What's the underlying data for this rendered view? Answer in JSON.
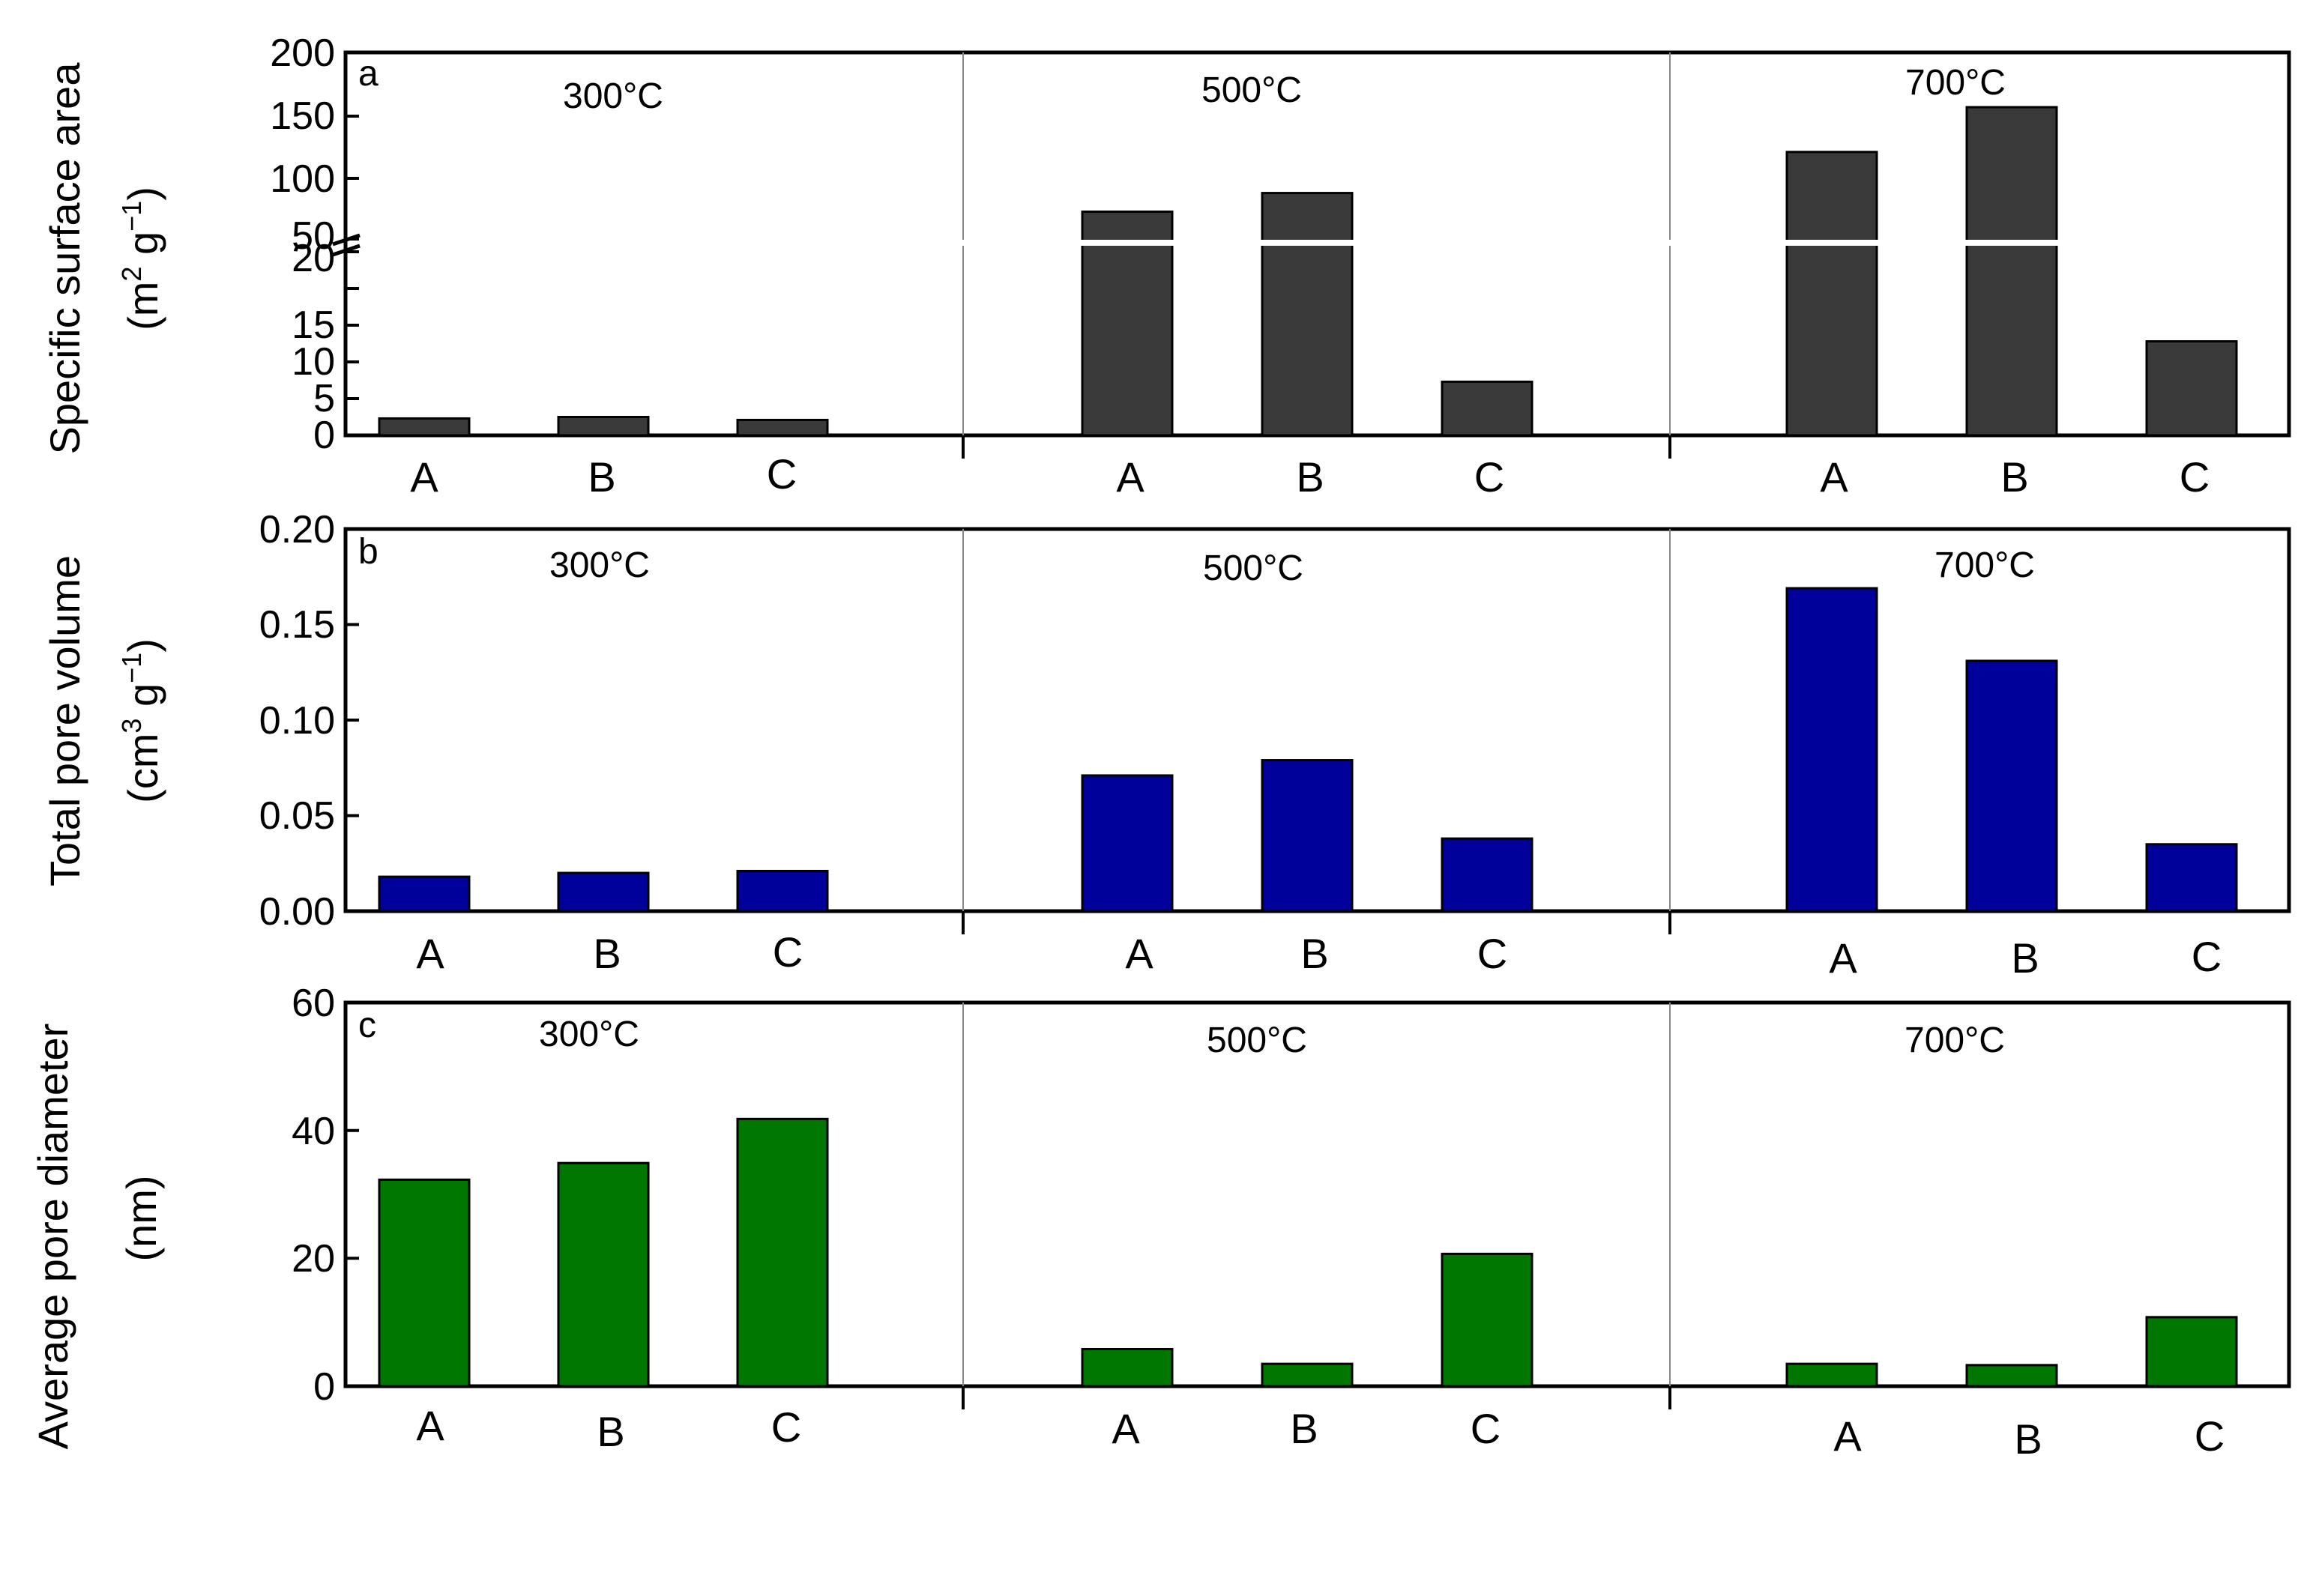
{
  "chart_data": [
    {
      "type": "bar",
      "panel_label": "a",
      "ylabel_line1": "Specific surface area",
      "ylabel_line2": "(m² g⁻¹)",
      "ylabel_parts": {
        "open": "(m",
        "sup1": "2",
        "mid": " g",
        "sup2": "−1",
        "close": ")"
      },
      "axis_break": true,
      "lower_range": [
        0,
        20
      ],
      "upper_range": [
        50,
        200
      ],
      "upper_ticks": [
        "200",
        "150",
        "100",
        "50"
      ],
      "lower_ticks": [
        "20",
        "15",
        "10",
        "5",
        "0"
      ],
      "groups": [
        {
          "label": "300°C",
          "categories": [
            "A",
            "B",
            "C"
          ],
          "values": [
            2.3,
            2.5,
            2.1
          ]
        },
        {
          "label": "500°C",
          "categories": [
            "A",
            "B",
            "C"
          ],
          "values": [
            72,
            87,
            7.3
          ]
        },
        {
          "label": "700°C",
          "categories": [
            "A",
            "B",
            "C"
          ],
          "values": [
            120,
            156,
            12.8
          ]
        }
      ],
      "color": "#3a3a3a"
    },
    {
      "type": "bar",
      "panel_label": "b",
      "ylabel_line1": "Total pore volume",
      "ylabel_line2": "(cm³ g⁻¹)",
      "ylabel_parts": {
        "open": "(cm",
        "sup1": "3",
        "mid": " g",
        "sup2": "−1",
        "close": ")"
      },
      "ylim": [
        0,
        0.2
      ],
      "ticks": [
        "0.20",
        "0.15",
        "0.10",
        "0.05",
        "0.00"
      ],
      "groups": [
        {
          "label": "300°C",
          "categories": [
            "A",
            "B",
            "C"
          ],
          "values": [
            0.018,
            0.02,
            0.021
          ]
        },
        {
          "label": "500°C",
          "categories": [
            "A",
            "B",
            "C"
          ],
          "values": [
            0.071,
            0.079,
            0.038
          ]
        },
        {
          "label": "700°C",
          "categories": [
            "A",
            "B",
            "C"
          ],
          "values": [
            0.169,
            0.131,
            0.035
          ]
        }
      ],
      "color": "#00009b"
    },
    {
      "type": "bar",
      "panel_label": "c",
      "ylabel_line1": "Average pore diameter",
      "ylabel_line2": "(nm)",
      "ylim": [
        0,
        60
      ],
      "ticks": [
        "60",
        "40",
        "20",
        "0"
      ],
      "groups": [
        {
          "label": "300°C",
          "categories": [
            "A",
            "B",
            "C"
          ],
          "values": [
            32.3,
            34.9,
            41.8
          ]
        },
        {
          "label": "500°C",
          "categories": [
            "A",
            "B",
            "C"
          ],
          "values": [
            5.8,
            3.5,
            20.7
          ]
        },
        {
          "label": "700°C",
          "categories": [
            "A",
            "B",
            "C"
          ],
          "values": [
            3.5,
            3.3,
            10.8
          ]
        }
      ],
      "color": "#007700"
    }
  ]
}
